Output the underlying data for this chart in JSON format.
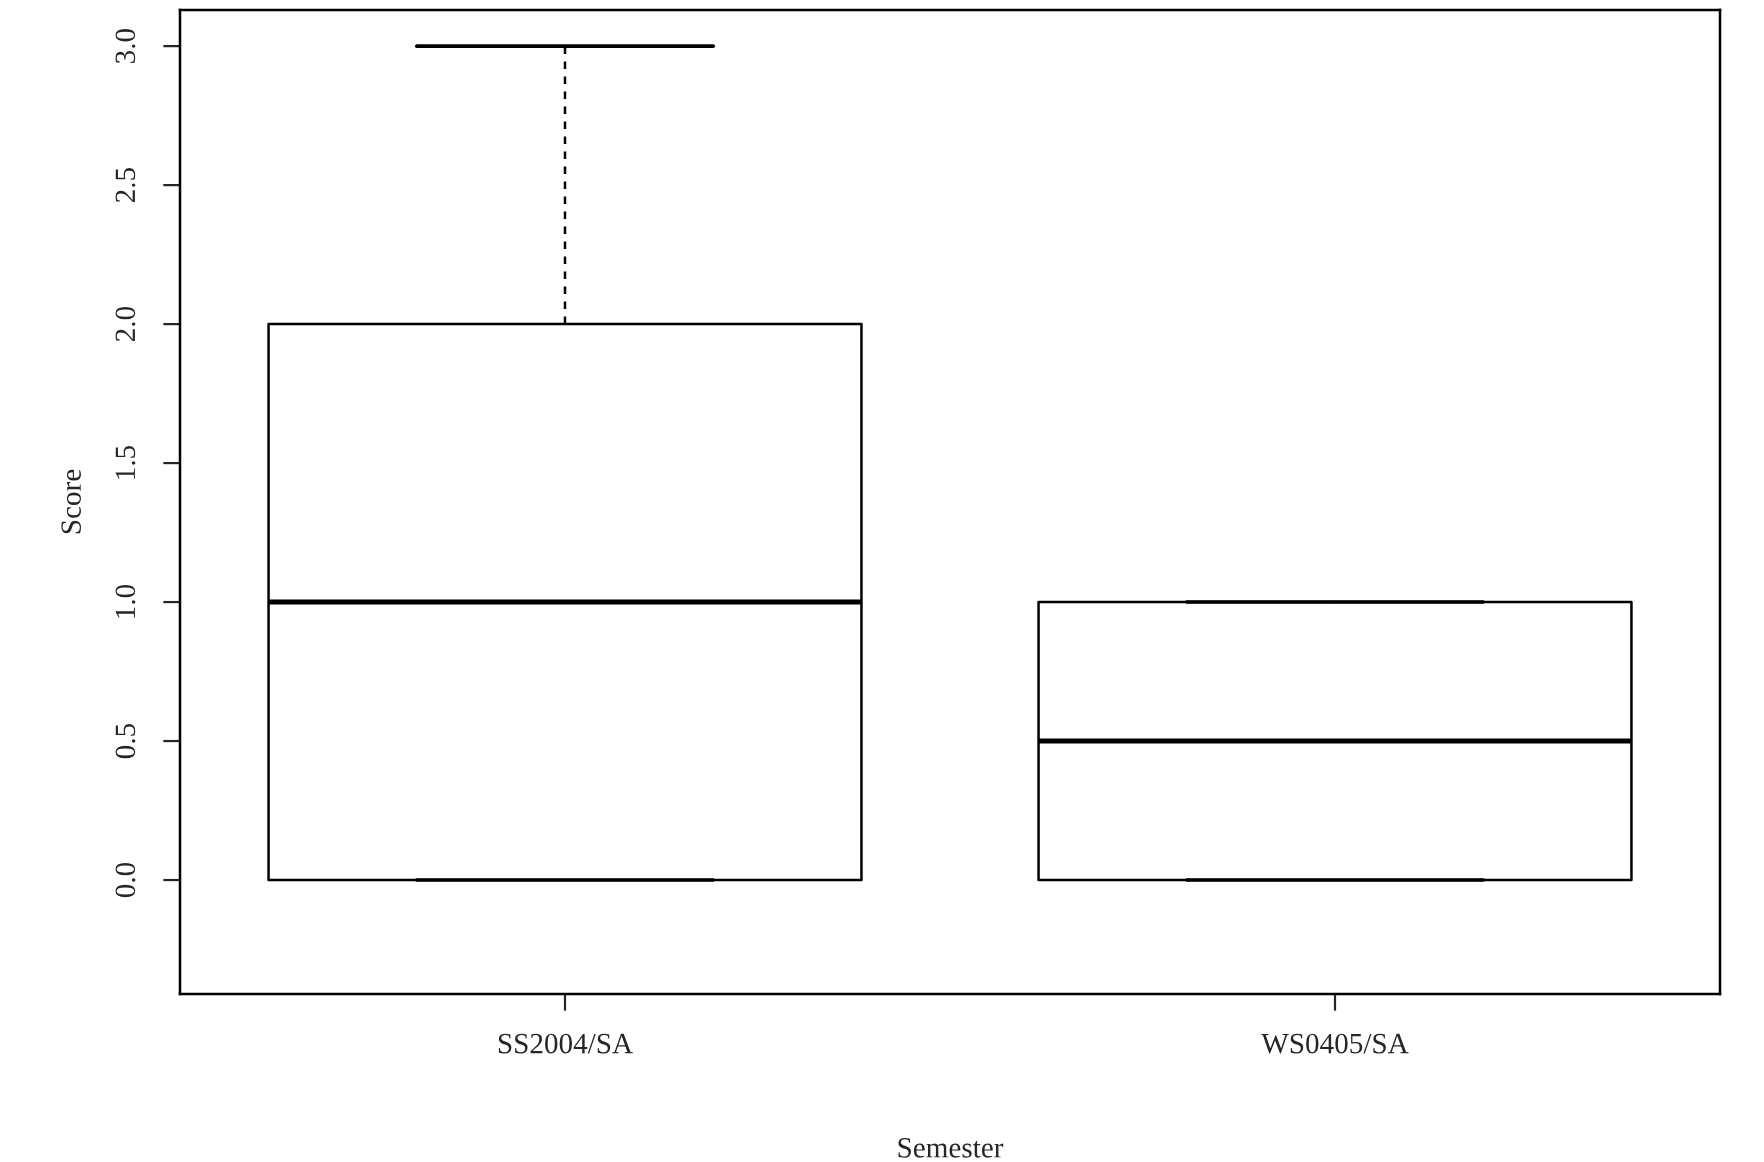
{
  "chart_data": {
    "type": "box",
    "xlabel": "Semester",
    "ylabel": "Score",
    "categories": [
      "SS2004/SA",
      "WS0405/SA"
    ],
    "boxes": [
      {
        "low": 0,
        "q1": 0,
        "median": 1,
        "q3": 2,
        "high": 3
      },
      {
        "low": 0,
        "q1": 0,
        "median": 0.5,
        "q3": 1,
        "high": 1
      }
    ],
    "ylim": [
      -0.41,
      3.13
    ],
    "yticks": [
      {
        "value": 0,
        "label": "0.0"
      },
      {
        "value": 0.5,
        "label": "0.5"
      },
      {
        "value": 1,
        "label": "1.0"
      },
      {
        "value": 1.5,
        "label": "1.5"
      },
      {
        "value": 2,
        "label": "2.0"
      },
      {
        "value": 2.5,
        "label": "2.5"
      },
      {
        "value": 3,
        "label": "3.0"
      }
    ],
    "grid": false,
    "legend": false
  }
}
